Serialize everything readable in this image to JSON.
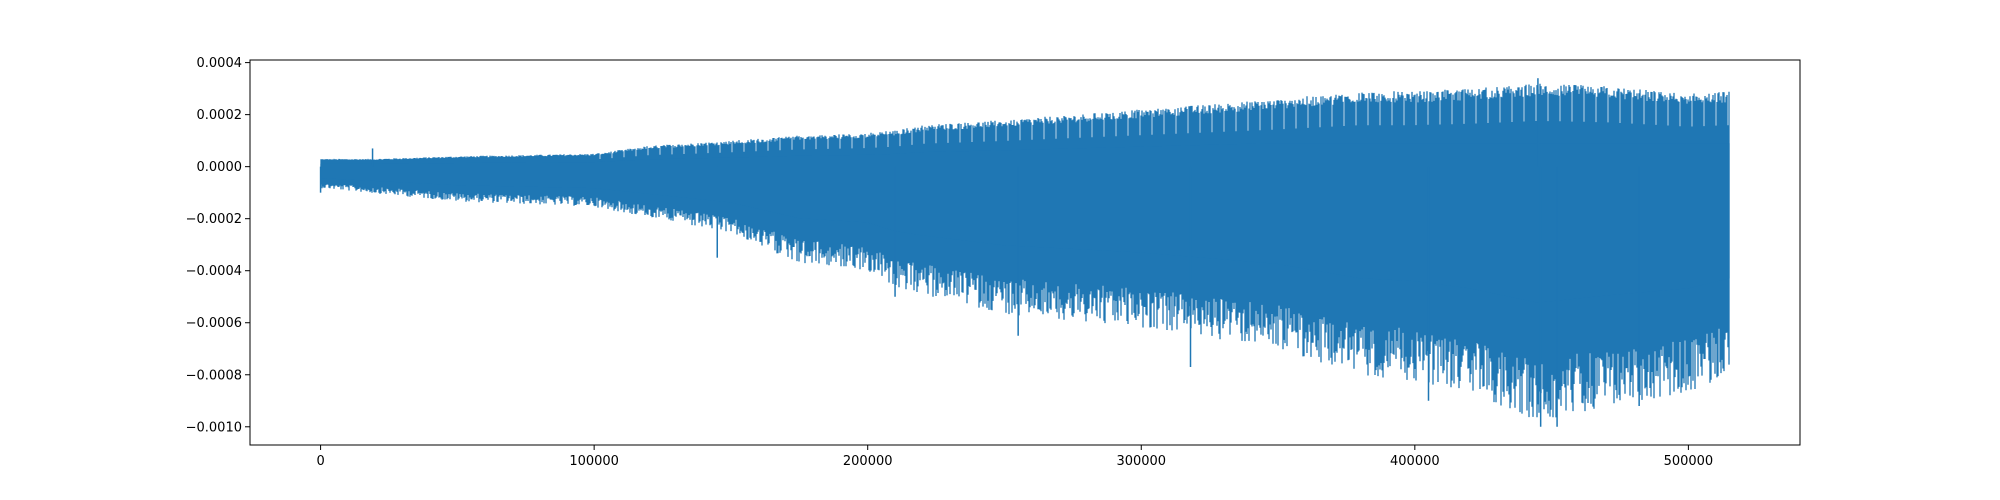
{
  "chart_data": {
    "type": "line",
    "title": "",
    "xlabel": "",
    "ylabel": "",
    "xlim": [
      -25800,
      540800
    ],
    "ylim": [
      -0.00107,
      0.00041
    ],
    "xticks": [
      0,
      100000,
      200000,
      300000,
      400000,
      500000
    ],
    "xtick_labels": [
      "0",
      "100000",
      "200000",
      "300000",
      "400000",
      "500000"
    ],
    "yticks": [
      0.0004,
      0.0002,
      0.0,
      -0.0002,
      -0.0004,
      -0.0006,
      -0.0008,
      -0.001
    ],
    "ytick_labels": [
      "0.0004",
      "0.0002",
      "0.0000",
      "−0.0002",
      "−0.0004",
      "−0.0006",
      "−0.0008",
      "−0.0010"
    ],
    "grid": false,
    "legend": "none",
    "color": "#1f77b4",
    "series": [
      {
        "x_range": [
          0,
          515000
        ],
        "envelope_x": [
          0,
          20000,
          50000,
          100000,
          120000,
          150000,
          175000,
          200000,
          210000,
          220000,
          250000,
          300000,
          350000,
          380000,
          400000,
          420000,
          445000,
          470000,
          500000,
          515000
        ],
        "upper": [
          3e-05,
          3e-05,
          4e-05,
          5e-05,
          8e-05,
          0.0001,
          0.00012,
          0.00013,
          0.00014,
          0.00016,
          0.00018,
          0.00022,
          0.00026,
          0.00029,
          0.00029,
          0.0003,
          0.00032,
          0.00031,
          0.00028,
          0.00029
        ],
        "lower": [
          -8e-05,
          -0.0001,
          -0.00013,
          -0.00015,
          -0.00019,
          -0.00025,
          -0.00036,
          -0.00039,
          -0.00045,
          -0.00048,
          -0.00055,
          -0.0006,
          -0.00068,
          -0.00078,
          -0.0008,
          -0.00085,
          -0.00095,
          -0.0009,
          -0.00085,
          -0.00078
        ],
        "spikes": [
          {
            "x": 0,
            "y": -0.0001
          },
          {
            "x": 19000,
            "y": 7e-05
          },
          {
            "x": 145000,
            "y": -0.00035
          },
          {
            "x": 210000,
            "y": -0.0005
          },
          {
            "x": 255000,
            "y": -0.00065
          },
          {
            "x": 318000,
            "y": -0.00077
          },
          {
            "x": 405000,
            "y": -0.0009
          },
          {
            "x": 445000,
            "y": 0.00034
          },
          {
            "x": 446000,
            "y": -0.001
          },
          {
            "x": 452000,
            "y": -0.001
          },
          {
            "x": 482000,
            "y": -0.00092
          }
        ]
      }
    ]
  }
}
